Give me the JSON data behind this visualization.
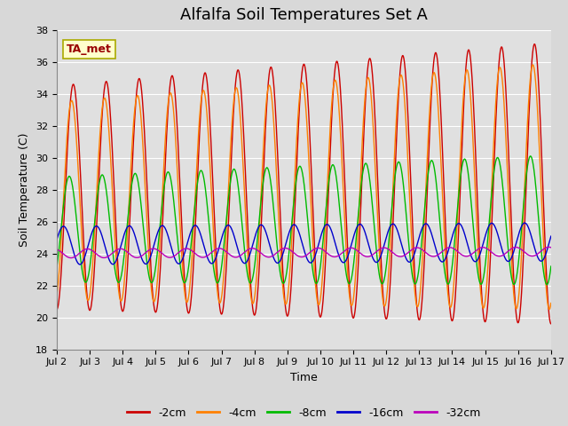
{
  "title": "Alfalfa Soil Temperatures Set A",
  "xlabel": "Time",
  "ylabel": "Soil Temperature (C)",
  "ylim": [
    18,
    38
  ],
  "yticks": [
    18,
    20,
    22,
    24,
    26,
    28,
    30,
    32,
    34,
    36,
    38
  ],
  "xtick_labels": [
    "Jul 2",
    "Jul 3",
    "Jul 4",
    "Jul 5",
    "Jul 6",
    "Jul 7",
    "Jul 8",
    "Jul 9",
    "Jul 10",
    "Jul 11",
    "Jul 12",
    "Jul 13",
    "Jul 14",
    "Jul 15",
    "Jul 16",
    "Jul 17"
  ],
  "bg_color": "#e0e0e0",
  "grid_color": "#ffffff",
  "fig_bg_color": "#d8d8d8",
  "series": [
    {
      "label": "-2cm",
      "color": "#cc0000",
      "mean": 27.5,
      "amplitude": 7.0,
      "phase_shift": -1.5708,
      "trend_slope": 0.06,
      "trend_amp": 0.12
    },
    {
      "label": "-4cm",
      "color": "#ff8000",
      "mean": 27.3,
      "amplitude": 6.2,
      "phase_shift": -1.25,
      "trend_slope": 0.06,
      "trend_amp": 0.1
    },
    {
      "label": "-8cm",
      "color": "#00bb00",
      "mean": 25.5,
      "amplitude": 3.3,
      "phase_shift": -0.8,
      "trend_slope": 0.04,
      "trend_amp": 0.05
    },
    {
      "label": "-16cm",
      "color": "#0000cc",
      "mean": 24.5,
      "amplitude": 1.2,
      "phase_shift": 0.3,
      "trend_slope": 0.015,
      "trend_amp": 0.0
    },
    {
      "label": "-32cm",
      "color": "#bb00bb",
      "mean": 24.0,
      "amplitude": 0.28,
      "phase_shift": 2.0,
      "trend_slope": 0.008,
      "trend_amp": 0.0
    }
  ],
  "annotation_text": "TA_met",
  "title_fontsize": 13,
  "axis_fontsize": 9,
  "tick_fontsize": 8,
  "legend_fontsize": 9
}
